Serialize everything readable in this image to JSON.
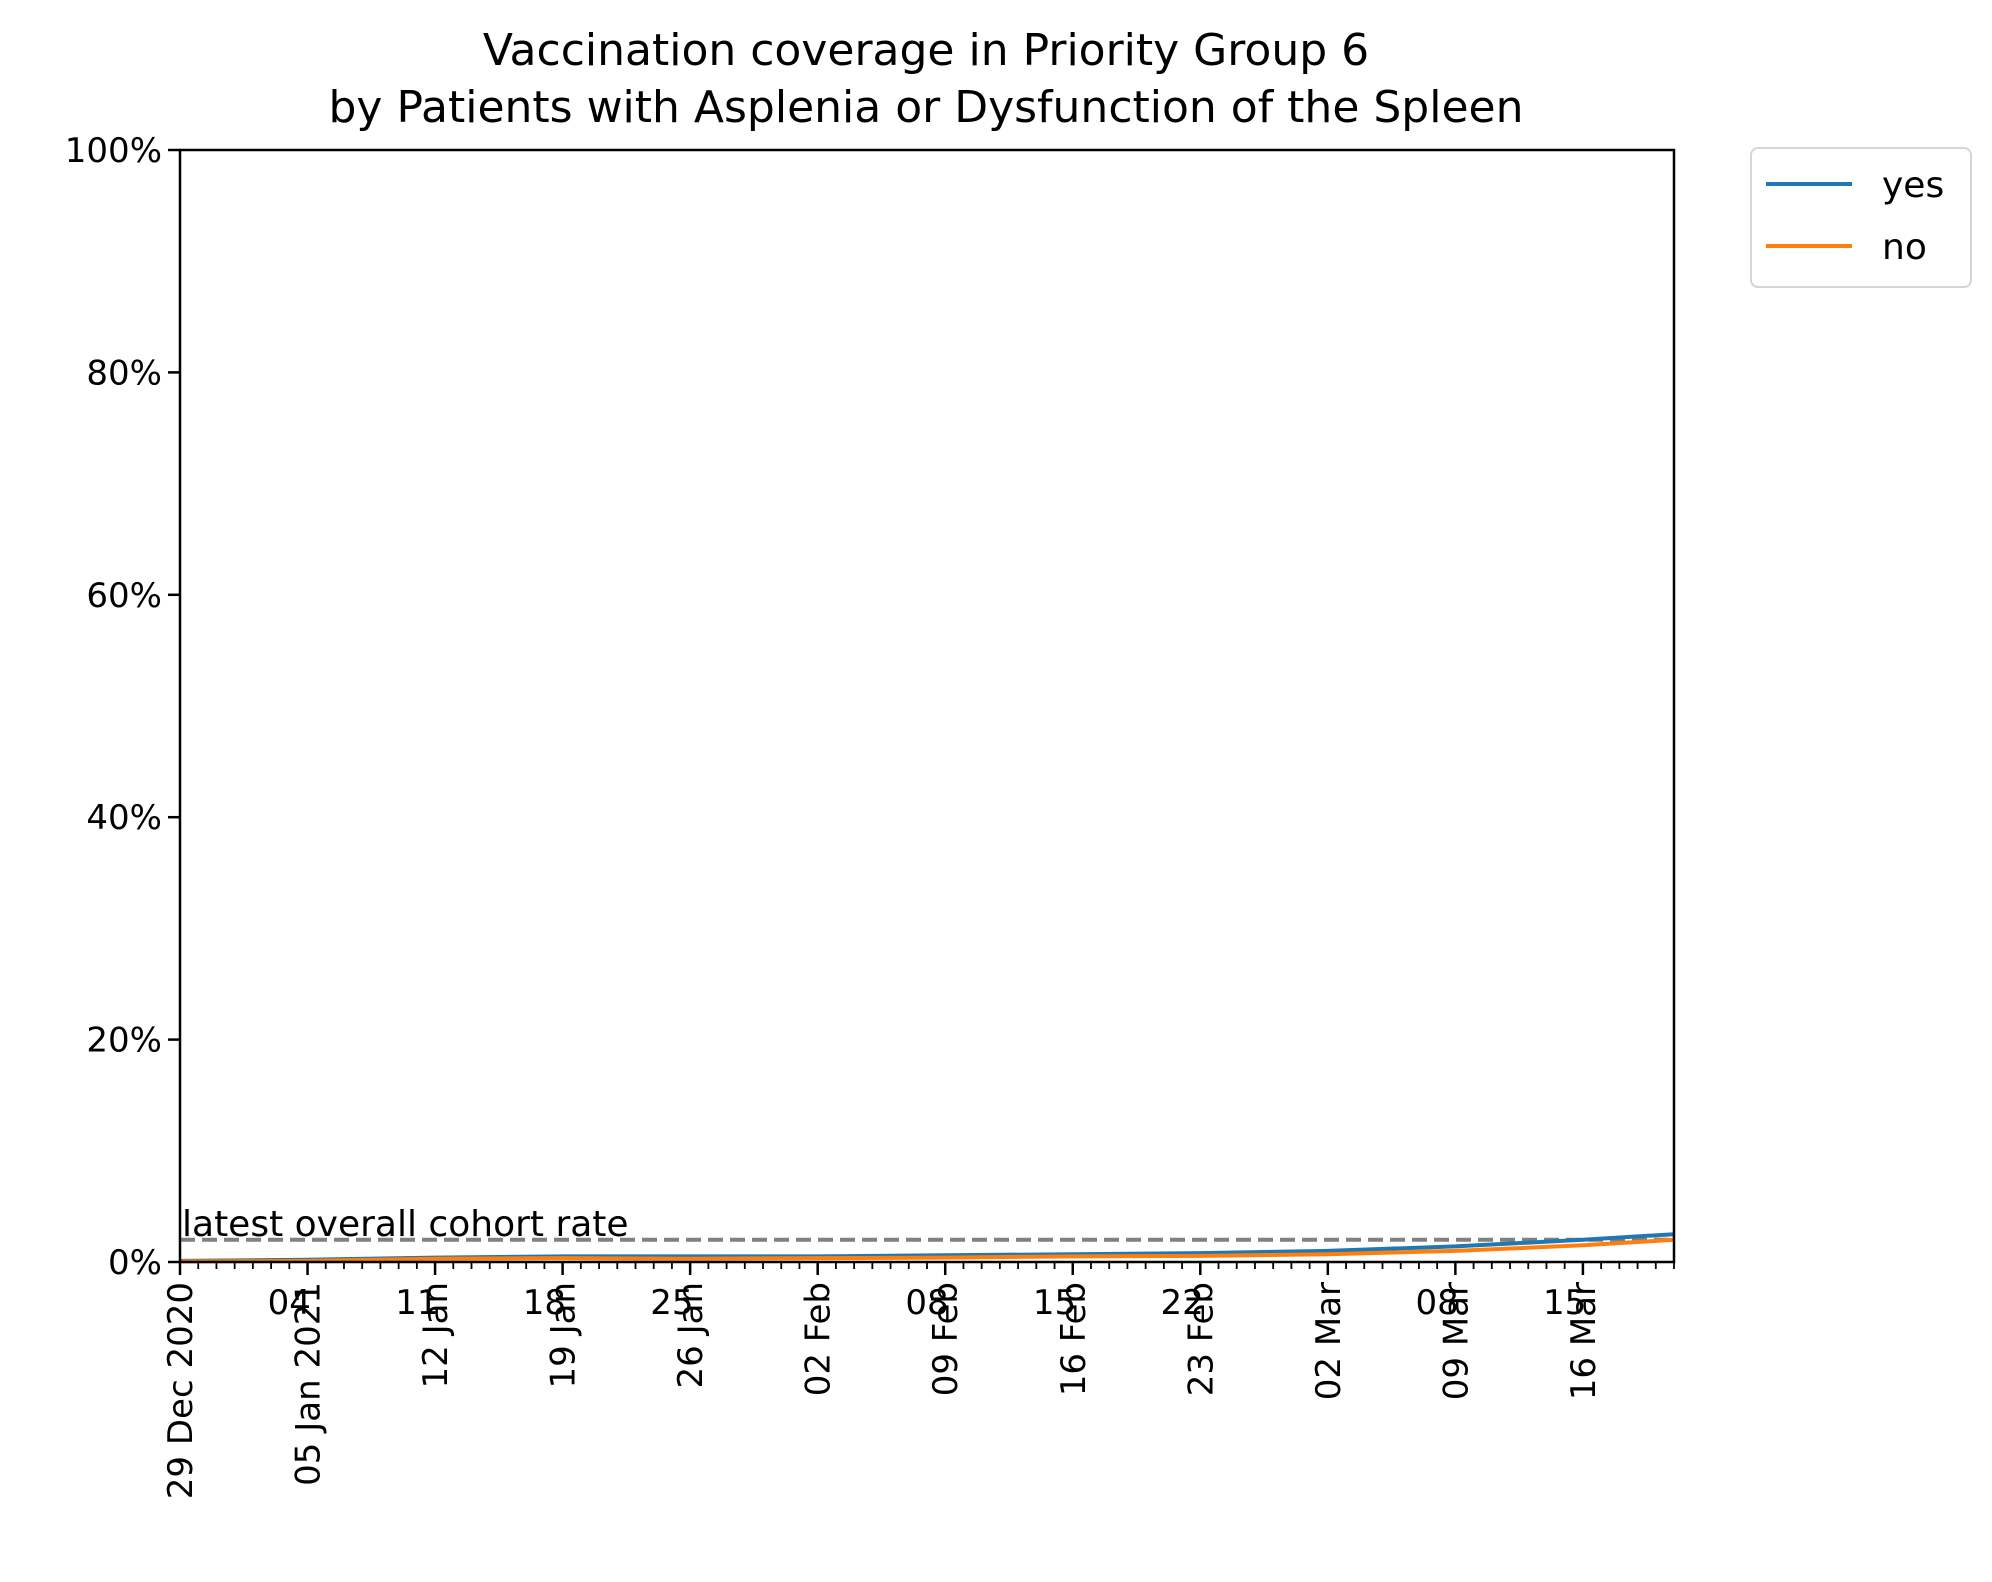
{
  "chart_data": {
    "type": "line",
    "title": [
      "Vaccination coverage in Priority Group 6",
      "by Patients with Asplenia or Dysfunction of the Spleen"
    ],
    "xlabel": "",
    "ylabel": "",
    "x_range": [
      "2020-12-29",
      "2021-03-21"
    ],
    "ylim": [
      0,
      100
    ],
    "y_ticks": [
      {
        "value": 0,
        "label": "0%"
      },
      {
        "value": 20,
        "label": "20%"
      },
      {
        "value": 40,
        "label": "40%"
      },
      {
        "value": 60,
        "label": "60%"
      },
      {
        "value": 80,
        "label": "80%"
      },
      {
        "value": 100,
        "label": "100%"
      }
    ],
    "major_x_ticks": [
      {
        "date": "2020-12-29",
        "label": "29 Dec 2020"
      },
      {
        "date": "2021-01-05",
        "label": "05 Jan 2021"
      },
      {
        "date": "2021-01-12",
        "label": "12 Jan"
      },
      {
        "date": "2021-01-19",
        "label": "19 Jan"
      },
      {
        "date": "2021-01-26",
        "label": "26 Jan"
      },
      {
        "date": "2021-02-02",
        "label": "02 Feb"
      },
      {
        "date": "2021-02-09",
        "label": "09 Feb"
      },
      {
        "date": "2021-02-16",
        "label": "16 Feb"
      },
      {
        "date": "2021-02-23",
        "label": "23 Feb"
      },
      {
        "date": "2021-03-02",
        "label": "02 Mar"
      },
      {
        "date": "2021-03-09",
        "label": "09 Mar"
      },
      {
        "date": "2021-03-16",
        "label": "16 Mar"
      }
    ],
    "minor_x_ticks": [
      {
        "date": "2021-01-04",
        "label": "04"
      },
      {
        "date": "2021-01-11",
        "label": "11"
      },
      {
        "date": "2021-01-18",
        "label": "18"
      },
      {
        "date": "2021-01-25",
        "label": "25"
      },
      {
        "date": "2021-02-08",
        "label": "08"
      },
      {
        "date": "2021-02-15",
        "label": "15"
      },
      {
        "date": "2021-02-22",
        "label": "22"
      },
      {
        "date": "2021-03-08",
        "label": "08"
      },
      {
        "date": "2021-03-15",
        "label": "15"
      }
    ],
    "series": [
      {
        "name": "yes",
        "color": "#1f77b4",
        "points": [
          {
            "x": "2020-12-29",
            "y": 0.1
          },
          {
            "x": "2021-01-05",
            "y": 0.2
          },
          {
            "x": "2021-01-12",
            "y": 0.4
          },
          {
            "x": "2021-01-19",
            "y": 0.5
          },
          {
            "x": "2021-01-26",
            "y": 0.5
          },
          {
            "x": "2021-02-02",
            "y": 0.5
          },
          {
            "x": "2021-02-09",
            "y": 0.6
          },
          {
            "x": "2021-02-16",
            "y": 0.7
          },
          {
            "x": "2021-02-23",
            "y": 0.8
          },
          {
            "x": "2021-03-02",
            "y": 1.0
          },
          {
            "x": "2021-03-09",
            "y": 1.4
          },
          {
            "x": "2021-03-16",
            "y": 2.0
          },
          {
            "x": "2021-03-21",
            "y": 2.5
          }
        ]
      },
      {
        "name": "no",
        "color": "#ff7f0e",
        "points": [
          {
            "x": "2020-12-29",
            "y": 0.05
          },
          {
            "x": "2021-01-05",
            "y": 0.1
          },
          {
            "x": "2021-01-12",
            "y": 0.3
          },
          {
            "x": "2021-01-19",
            "y": 0.35
          },
          {
            "x": "2021-01-26",
            "y": 0.3
          },
          {
            "x": "2021-02-02",
            "y": 0.35
          },
          {
            "x": "2021-02-09",
            "y": 0.4
          },
          {
            "x": "2021-02-16",
            "y": 0.5
          },
          {
            "x": "2021-02-23",
            "y": 0.55
          },
          {
            "x": "2021-03-02",
            "y": 0.7
          },
          {
            "x": "2021-03-09",
            "y": 1.0
          },
          {
            "x": "2021-03-16",
            "y": 1.5
          },
          {
            "x": "2021-03-21",
            "y": 2.0
          }
        ]
      }
    ],
    "reference_line": {
      "y": 2.0,
      "label": "latest overall cohort rate",
      "color": "#808080",
      "style": "dashed"
    },
    "legend": {
      "placement": "outside-top-right",
      "entries": [
        "yes",
        "no"
      ]
    },
    "grid": false
  }
}
